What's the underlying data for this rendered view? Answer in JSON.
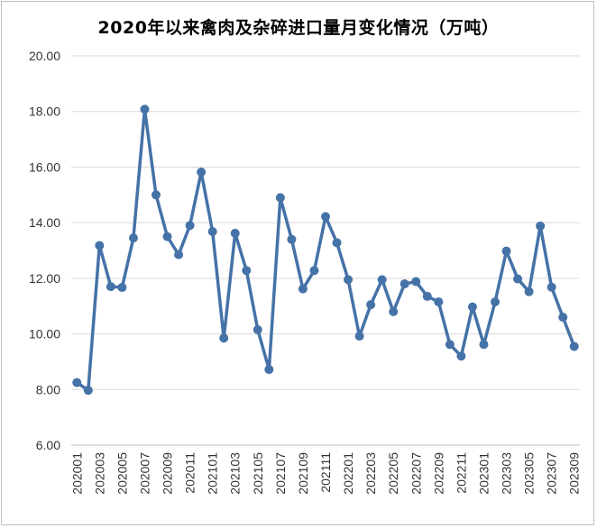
{
  "chart_data": {
    "type": "line",
    "title": "2020年以来禽肉及杂碎进口量月变化情况（万吨）",
    "xlabel": "",
    "ylabel": "",
    "ylim": [
      6,
      20
    ],
    "y_ticks": [
      "6.00",
      "8.00",
      "10.00",
      "12.00",
      "14.00",
      "16.00",
      "18.00",
      "20.00"
    ],
    "x_tick_labels": [
      "202001",
      "202003",
      "202005",
      "202007",
      "202009",
      "202011",
      "202101",
      "202103",
      "202105",
      "202107",
      "202109",
      "202111",
      "202201",
      "202203",
      "202205",
      "202207",
      "202209",
      "202211",
      "202301",
      "202303",
      "202305",
      "202307",
      "202309"
    ],
    "grid": true,
    "legend": "none",
    "line_color": "#4572a7",
    "categories": [
      "202001",
      "202002",
      "202003",
      "202004",
      "202005",
      "202006",
      "202007",
      "202008",
      "202009",
      "202010",
      "202011",
      "202012",
      "202101",
      "202102",
      "202103",
      "202104",
      "202105",
      "202106",
      "202107",
      "202108",
      "202109",
      "202110",
      "202111",
      "202112",
      "202201",
      "202202",
      "202203",
      "202204",
      "202205",
      "202206",
      "202207",
      "202208",
      "202209",
      "202210",
      "202211",
      "202212",
      "202301",
      "202302",
      "202303",
      "202304",
      "202305",
      "202306",
      "202307",
      "202308",
      "202309"
    ],
    "values": [
      8.25,
      7.97,
      13.18,
      11.7,
      11.67,
      13.45,
      18.08,
      15.0,
      13.5,
      12.85,
      13.9,
      15.82,
      13.68,
      9.85,
      13.62,
      12.28,
      10.15,
      8.72,
      14.9,
      13.4,
      11.62,
      12.28,
      14.22,
      13.28,
      11.95,
      9.92,
      11.05,
      11.95,
      10.8,
      11.8,
      11.88,
      11.35,
      11.15,
      9.62,
      9.2,
      10.97,
      9.62,
      11.15,
      12.98,
      11.98,
      11.52,
      13.88,
      11.68,
      10.6,
      9.55
    ]
  }
}
